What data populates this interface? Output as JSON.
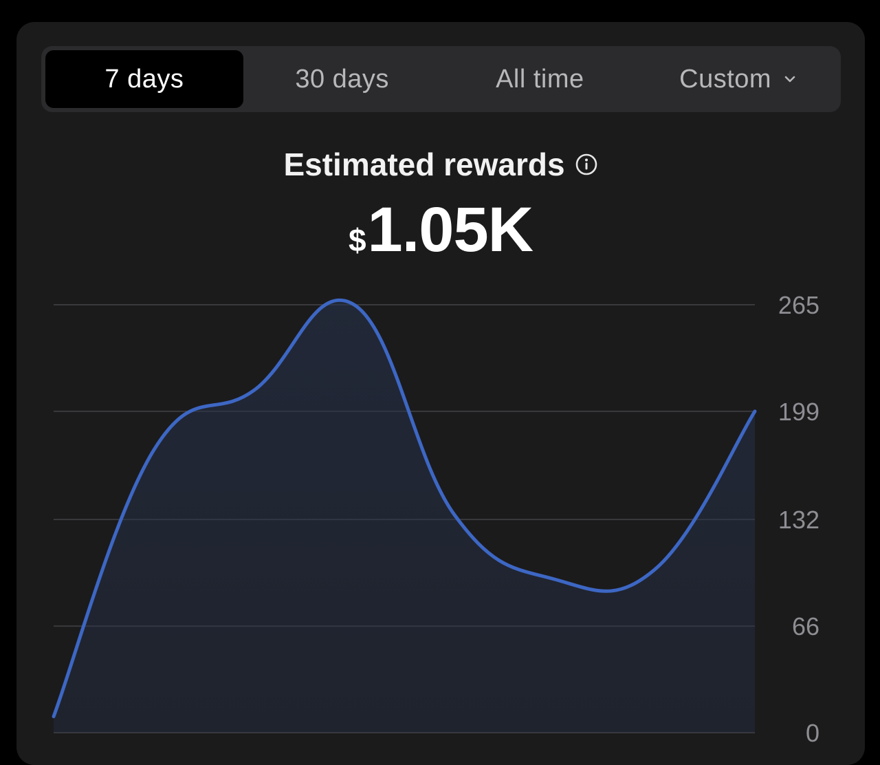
{
  "tabs": [
    {
      "label": "7 days",
      "active": true
    },
    {
      "label": "30 days",
      "active": false
    },
    {
      "label": "All time",
      "active": false
    },
    {
      "label": "Custom",
      "active": false,
      "icon": "chevron-down-icon"
    }
  ],
  "summary": {
    "title": "Estimated rewards",
    "info_icon": "info-icon",
    "currency": "$",
    "amount": "1.05K"
  },
  "colors": {
    "line": "#3d67c4",
    "grid": "#3a3a3c",
    "tick": "#8e8e93",
    "card": "#1b1b1c"
  },
  "chart_data": {
    "type": "area",
    "x": [
      0,
      1,
      2,
      3,
      4,
      5,
      6,
      7
    ],
    "values": [
      10,
      175,
      212,
      265,
      135,
      95,
      101,
      199
    ],
    "ylim": [
      0,
      265
    ],
    "yticks": [
      0,
      66,
      132,
      199,
      265
    ],
    "ytick_labels": [
      "0",
      "66",
      "132",
      "199",
      "265"
    ],
    "grid": true,
    "yaxis_position": "right"
  }
}
